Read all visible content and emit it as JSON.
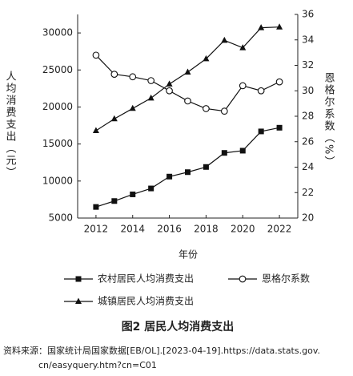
{
  "chart_data": {
    "type": "line",
    "x_label": "年份",
    "y_label": "人均消费支出（元）",
    "y2_label": "恩格尔系数（%）",
    "caption": "图2 居民人均消费支出",
    "source": [
      "资料来源：国家统计局国家数据[EB/OL].[2023-04-19].https://data.stats.gov.",
      "cn/easyquery.htm?cn=C01"
    ],
    "x": [
      2012,
      2013,
      2014,
      2015,
      2016,
      2017,
      2018,
      2019,
      2020,
      2021,
      2022
    ],
    "xlim": [
      2011,
      2023
    ],
    "xticks": [
      2012,
      2014,
      2016,
      2018,
      2020,
      2022
    ],
    "ylim": [
      5000,
      32500
    ],
    "yticks": [
      5000,
      10000,
      15000,
      20000,
      25000,
      30000
    ],
    "y2lim": [
      20,
      36
    ],
    "y2ticks": [
      20,
      22,
      24,
      26,
      28,
      30,
      32,
      34,
      36
    ],
    "series": [
      {
        "name": "农村居民人均消费支出",
        "color": "#111111",
        "marker": "square",
        "values": [
          6500,
          7300,
          8200,
          9000,
          10600,
          11200,
          11900,
          13800,
          14100,
          16700,
          17200
        ]
      },
      {
        "name": "恩格尔系数",
        "color": "#111111",
        "marker": "circle",
        "axis": "y2",
        "values": [
          32.8,
          31.3,
          31.1,
          30.8,
          30.0,
          29.2,
          28.6,
          28.4,
          30.4,
          30.0,
          30.7
        ]
      },
      {
        "name": "城镇居民人均消费支出",
        "color": "#111111",
        "marker": "triangle",
        "values": [
          16800,
          18400,
          19800,
          21200,
          23100,
          24700,
          26500,
          29000,
          28000,
          30700,
          30800
        ]
      }
    ]
  }
}
